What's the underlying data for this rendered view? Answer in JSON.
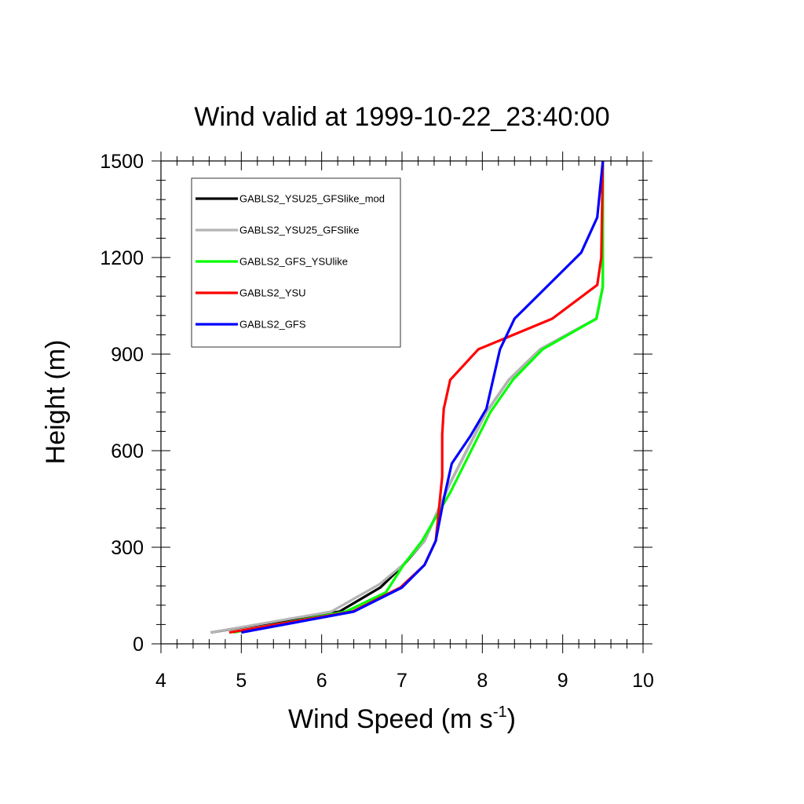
{
  "chart_data": {
    "type": "line",
    "title": "Wind valid at 1999-10-22_23:40:00",
    "xlabel": {
      "base": "Wind Speed (m s",
      "sup": "-1",
      "tail": ")"
    },
    "ylabel": "Height (m)",
    "xlim": [
      4,
      10
    ],
    "ylim": [
      0,
      1500
    ],
    "xticks": [
      "4",
      "5",
      "6",
      "7",
      "8",
      "9",
      "10"
    ],
    "yticks": [
      "0",
      "300",
      "600",
      "900",
      "1200",
      "1500"
    ],
    "grid": false,
    "legend_position": "top-left",
    "series": [
      {
        "name": "GABLS2_YSU25_GFSlike_mod",
        "color": "#000000",
        "points": [
          [
            4.62,
            35
          ],
          [
            6.22,
            100
          ],
          [
            6.73,
            175
          ],
          [
            7.02,
            245
          ],
          [
            7.28,
            320
          ],
          [
            7.6,
            500
          ],
          [
            8.05,
            720
          ],
          [
            8.33,
            820
          ],
          [
            8.72,
            915
          ],
          [
            9.42,
            1010
          ],
          [
            9.5,
            1110
          ],
          [
            9.5,
            1500
          ]
        ]
      },
      {
        "name": "GABLS2_YSU25_GFSlike",
        "color": "#b4b4b4",
        "points": [
          [
            4.62,
            35
          ],
          [
            6.12,
            100
          ],
          [
            6.72,
            185
          ],
          [
            7.01,
            245
          ],
          [
            7.28,
            320
          ],
          [
            7.6,
            500
          ],
          [
            8.05,
            720
          ],
          [
            8.33,
            820
          ],
          [
            8.72,
            915
          ],
          [
            9.42,
            1010
          ],
          [
            9.5,
            1110
          ],
          [
            9.5,
            1500
          ]
        ]
      },
      {
        "name": "GABLS2_GFS_YSUlike",
        "color": "#00ff00",
        "points": [
          [
            4.9,
            35
          ],
          [
            6.3,
            100
          ],
          [
            6.8,
            160
          ],
          [
            7.02,
            245
          ],
          [
            7.25,
            320
          ],
          [
            7.6,
            470
          ],
          [
            8.1,
            720
          ],
          [
            8.38,
            820
          ],
          [
            8.75,
            915
          ],
          [
            9.42,
            1010
          ],
          [
            9.5,
            1110
          ],
          [
            9.5,
            1500
          ]
        ]
      },
      {
        "name": "GABLS2_YSU",
        "color": "#ff0000",
        "points": [
          [
            4.85,
            35
          ],
          [
            6.38,
            100
          ],
          [
            6.98,
            175
          ],
          [
            7.28,
            245
          ],
          [
            7.42,
            320
          ],
          [
            7.5,
            520
          ],
          [
            7.5,
            650
          ],
          [
            7.52,
            730
          ],
          [
            7.6,
            820
          ],
          [
            7.95,
            915
          ],
          [
            8.87,
            1010
          ],
          [
            9.43,
            1115
          ],
          [
            9.48,
            1200
          ],
          [
            9.5,
            1500
          ]
        ]
      },
      {
        "name": "GABLS2_GFS",
        "color": "#0000ff",
        "points": [
          [
            5.0,
            35
          ],
          [
            6.4,
            100
          ],
          [
            7.0,
            175
          ],
          [
            7.28,
            245
          ],
          [
            7.42,
            320
          ],
          [
            7.52,
            450
          ],
          [
            7.62,
            560
          ],
          [
            7.85,
            645
          ],
          [
            8.05,
            730
          ],
          [
            8.22,
            915
          ],
          [
            8.4,
            1010
          ],
          [
            9.23,
            1215
          ],
          [
            9.43,
            1325
          ],
          [
            9.5,
            1500
          ]
        ]
      }
    ]
  }
}
